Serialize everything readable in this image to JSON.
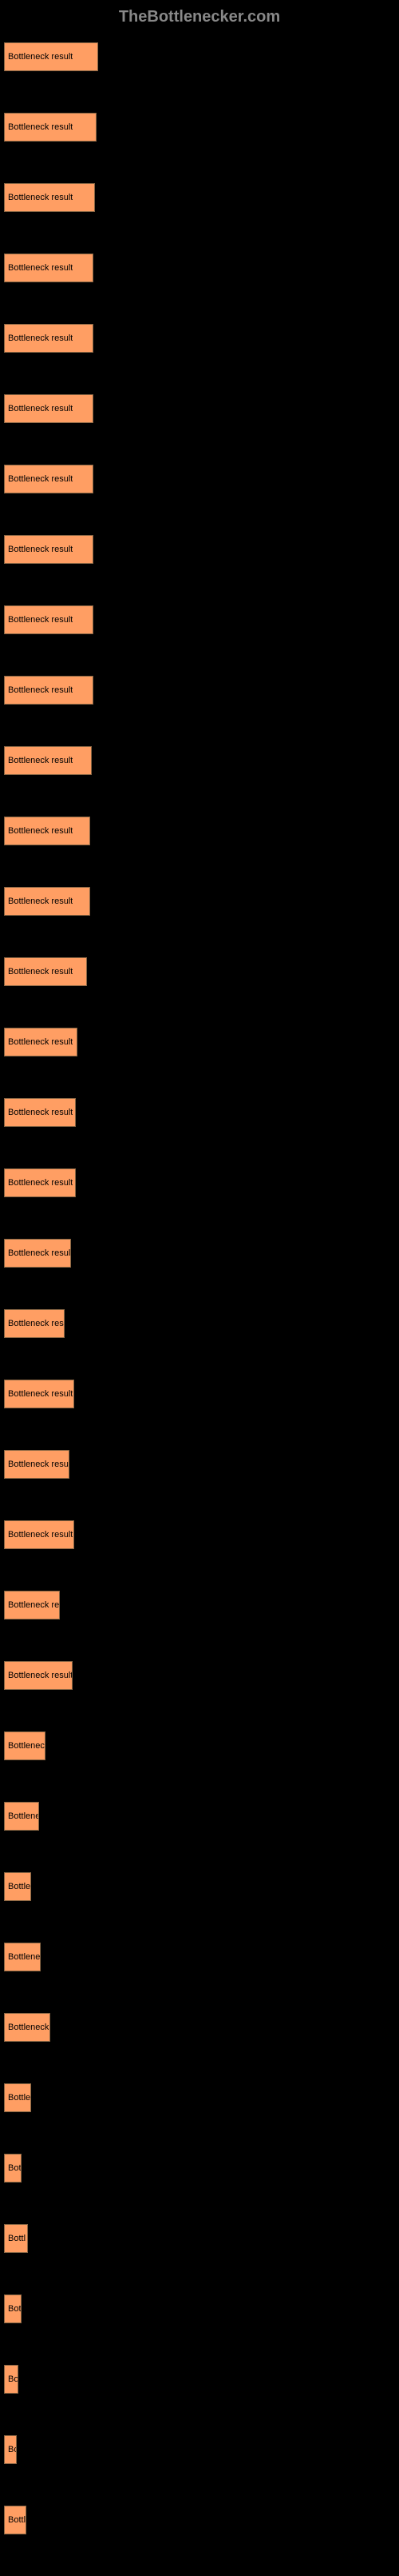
{
  "header": {
    "title": "TheBottlenecker.com"
  },
  "chart": {
    "type": "bar",
    "bar_color": "#ff9e63",
    "bar_border_color": "#886644",
    "background_color": "#000000",
    "label_color": "#ffffff",
    "bar_text_color": "#000000",
    "max_width": 120,
    "bars": [
      {
        "label": "",
        "text": "Bottleneck result",
        "width": 118
      },
      {
        "label": "",
        "text": "Bottleneck result",
        "width": 116
      },
      {
        "label": "",
        "text": "Bottleneck result",
        "width": 114
      },
      {
        "label": "",
        "text": "Bottleneck result",
        "width": 112
      },
      {
        "label": "",
        "text": "Bottleneck result",
        "width": 112
      },
      {
        "label": "",
        "text": "Bottleneck result",
        "width": 112
      },
      {
        "label": "",
        "text": "Bottleneck result",
        "width": 112
      },
      {
        "label": "",
        "text": "Bottleneck result",
        "width": 112
      },
      {
        "label": "",
        "text": "Bottleneck result",
        "width": 112
      },
      {
        "label": "",
        "text": "Bottleneck result",
        "width": 112
      },
      {
        "label": "",
        "text": "Bottleneck result",
        "width": 110
      },
      {
        "label": "",
        "text": "Bottleneck result",
        "width": 108
      },
      {
        "label": "",
        "text": "Bottleneck result",
        "width": 108
      },
      {
        "label": "",
        "text": "Bottleneck result",
        "width": 104
      },
      {
        "label": "",
        "text": "Bottleneck result",
        "width": 92
      },
      {
        "label": "",
        "text": "Bottleneck result",
        "width": 90
      },
      {
        "label": "",
        "text": "Bottleneck result",
        "width": 90
      },
      {
        "label": "",
        "text": "Bottleneck result",
        "width": 84
      },
      {
        "label": "",
        "text": "Bottleneck res",
        "width": 76
      },
      {
        "label": "",
        "text": "Bottleneck result",
        "width": 88
      },
      {
        "label": "",
        "text": "Bottleneck resul",
        "width": 82
      },
      {
        "label": "",
        "text": "Bottleneck result",
        "width": 88
      },
      {
        "label": "",
        "text": "Bottleneck re",
        "width": 70
      },
      {
        "label": "",
        "text": "Bottleneck result",
        "width": 86
      },
      {
        "label": "",
        "text": "Bottlenec",
        "width": 52
      },
      {
        "label": "",
        "text": "Bottlene",
        "width": 44
      },
      {
        "label": "",
        "text": "Bottle",
        "width": 34
      },
      {
        "label": "",
        "text": "Bottlene",
        "width": 46
      },
      {
        "label": "",
        "text": "Bottleneck",
        "width": 58
      },
      {
        "label": "",
        "text": "Bottle",
        "width": 34
      },
      {
        "label": "",
        "text": "Bot",
        "width": 22
      },
      {
        "label": "",
        "text": "Bottl",
        "width": 30
      },
      {
        "label": "",
        "text": "Bot",
        "width": 22
      },
      {
        "label": "",
        "text": "Bo",
        "width": 18
      },
      {
        "label": "",
        "text": "Bo",
        "width": 16
      },
      {
        "label": "",
        "text": "Bottl",
        "width": 28
      }
    ]
  }
}
